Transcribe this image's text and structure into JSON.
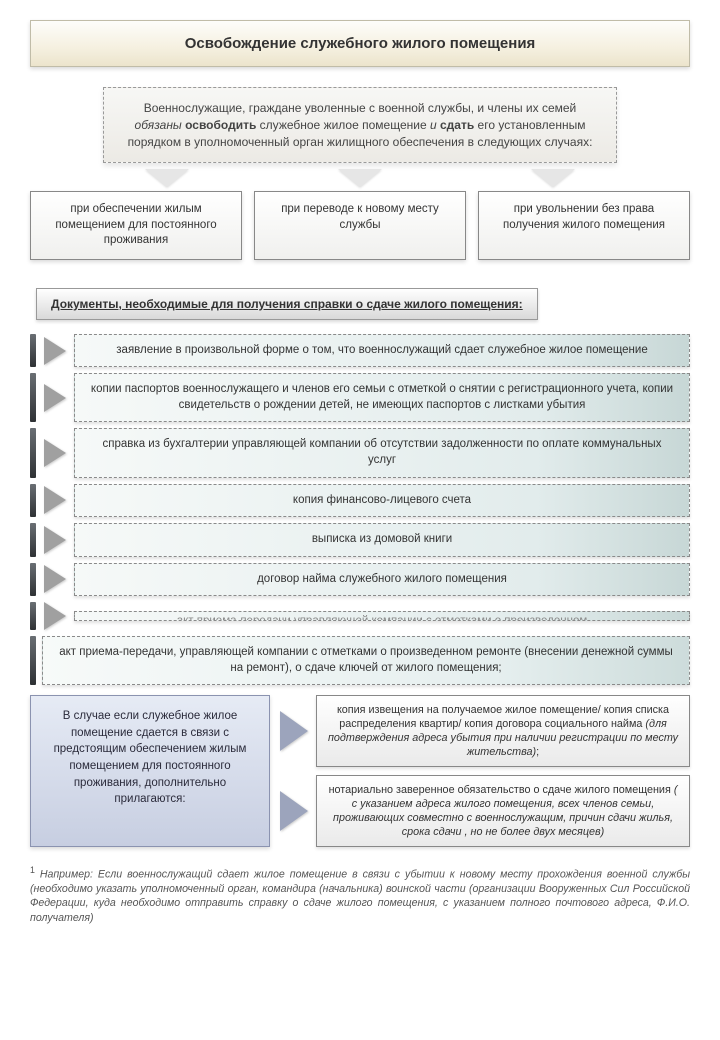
{
  "title": "Освобождение служебного жилого помещения",
  "intro_html": "Военнослужащие, граждане уволенные с военной службы, и члены их семей <em>обязаны</em> <b>освободить</b> служебное жилое помещение <em>и</em> <b>сдать</b> его установленным порядком в уполномоченный орган жилищного обеспечения в следующих случаях:",
  "cases": [
    "при обеспечении жилым помещением для постоянного проживания",
    "при переводе к новому месту службы",
    "при увольнении без права получения жилого помещения"
  ],
  "docs_header": "Документы, необходимые для получения справки о сдаче жилого помещения:",
  "docs": [
    "заявление в произвольной форме о том, что военнослужащий сдает служебное жилое помещение",
    "копии паспортов военнослужащего и членов его семьи с отметкой о снятии с регистрационного учета, копии свидетельств о рождении детей, не имеющих паспортов с листками убытия",
    "справка из бухгалтерии управляющей компании об отсутствии задолженности по оплате коммунальных услуг",
    "копия финансово-лицевого счета",
    "выписка из домовой книги",
    "договор найма служебного жилого помещения"
  ],
  "doc_truncated": "акт приема-передачи управляющей компании с отметками о произведенном",
  "doc_wide": "акт приема-передачи, управляющей компании  с отметками о произведенном ремонте (внесении денежной суммы на ремонт), о сдаче ключей от жилого помещения;",
  "supp_left": "В случае если  служебное жилое помещение сдается в связи с предстоящим обеспечением жилым помещением для постоянного проживания, дополнительно прилагаются:",
  "supp_right": [
    "копия извещения на получаемое жилое помещение/ копия списка распределения квартир/ копия договора социального найма <em>(для подтверждения адреса убытия при наличии регистрации по месту жительства)</em>;",
    "нотариально заверенное обязательство о сдаче жилого помещения <em>( с указанием адреса жилого помещения, всех членов семьи, проживающих совместно с военнослужащим, причин сдачи жилья, срока сдачи , но не более двух месяцев)</em>"
  ],
  "footnote_html": "<sup>1</sup> <em>Например:</em> Если военнослужащий сдает жилое помещение в связи с убытии к новому месту прохождения военной службы  <em>(необходимо указать уполномоченный орган, командира (начальника) воинской части (организации Вооруженных Сил Российской Федерации, куда необходимо отправить справку о сдаче жилого помещения, с указанием полного почтового адреса, Ф.И.О. получателя)</em>",
  "colors": {
    "title_bg_top": "#fdfdfb",
    "title_bg_bottom": "#ece4cc",
    "doc_bg_right": "#c7d7d6",
    "supp_left_bg": "#c7cee1",
    "arrow_gray": "#a0a0a0",
    "arrow_blue": "#9ca4bc"
  }
}
